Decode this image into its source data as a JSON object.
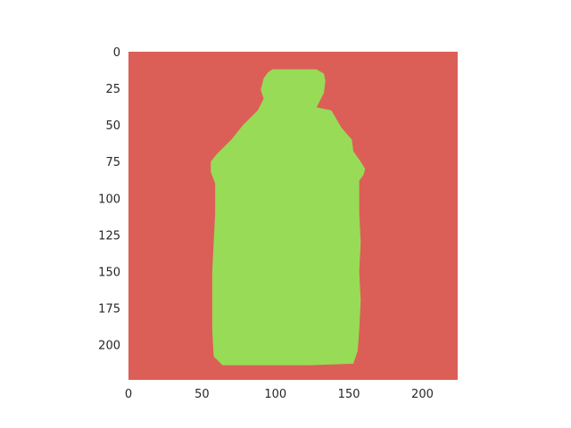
{
  "chart_data": {
    "type": "heatmap",
    "title": "",
    "xlabel": "",
    "ylabel": "",
    "xlim": [
      0,
      224
    ],
    "ylim": [
      224,
      0
    ],
    "y_axis_inverted": true,
    "grid": false,
    "x_ticks": [
      0,
      50,
      100,
      150,
      200
    ],
    "y_ticks": [
      0,
      25,
      50,
      75,
      100,
      125,
      150,
      175,
      200
    ],
    "background_color": "#db5f57",
    "mask_color": "#98db57",
    "mask_region": {
      "description_rows": "bottle silhouette mask in image pixel coordinates",
      "outline": [
        [
          98,
          12
        ],
        [
          128,
          12
        ],
        [
          133,
          15
        ],
        [
          134,
          20
        ],
        [
          133,
          28
        ],
        [
          131,
          32
        ],
        [
          128,
          38
        ],
        [
          138,
          40
        ],
        [
          145,
          52
        ],
        [
          152,
          60
        ],
        [
          153,
          68
        ],
        [
          158,
          75
        ],
        [
          161,
          80
        ],
        [
          160,
          84
        ],
        [
          157,
          88
        ],
        [
          157,
          110
        ],
        [
          158,
          130
        ],
        [
          157,
          150
        ],
        [
          158,
          170
        ],
        [
          157,
          190
        ],
        [
          156,
          204
        ],
        [
          153,
          213
        ],
        [
          123,
          214
        ],
        [
          64,
          214
        ],
        [
          58,
          208
        ],
        [
          57,
          190
        ],
        [
          57,
          170
        ],
        [
          57,
          150
        ],
        [
          58,
          130
        ],
        [
          59,
          110
        ],
        [
          59,
          90
        ],
        [
          56,
          82
        ],
        [
          56,
          75
        ],
        [
          60,
          70
        ],
        [
          70,
          60
        ],
        [
          78,
          50
        ],
        [
          88,
          40
        ],
        [
          92,
          32
        ],
        [
          90,
          26
        ],
        [
          92,
          18
        ],
        [
          95,
          14
        ]
      ]
    }
  }
}
